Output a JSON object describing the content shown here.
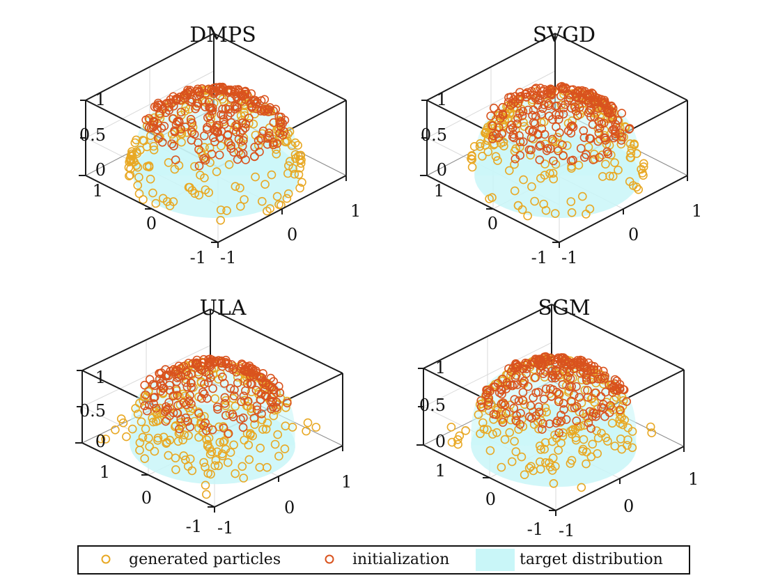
{
  "figure": {
    "description_note": "",
    "legend": {
      "generated_label": "generated particles",
      "init_label": "initialization",
      "target_label": "target distribution"
    },
    "colors": {
      "generated": "#E8A824",
      "initialization": "#D9531E",
      "target": "#C9F6F8",
      "axes": "#1a1a1a",
      "grid": "#d9d9d9"
    }
  },
  "chart_data": [
    {
      "type": "scatter3d",
      "title": "DMPS",
      "xlim": [
        -1,
        1
      ],
      "ylim": [
        -1,
        1
      ],
      "zlim": [
        0,
        1
      ],
      "x_ticks": [
        "-1",
        "0",
        "1"
      ],
      "y_ticks": [
        "-1",
        "0",
        "1"
      ],
      "z_ticks": [
        "0",
        "0.5",
        "1"
      ],
      "series": [
        {
          "name": "target distribution",
          "shape": "hemisphere",
          "radius": 0.9
        },
        {
          "name": "generated particles",
          "count": 210,
          "distribution": "spread over hemisphere, concentrated near cap",
          "seed": 11
        },
        {
          "name": "initialization",
          "count": 240,
          "distribution": "cap band z≈0.6–1",
          "seed": 12
        }
      ]
    },
    {
      "type": "scatter3d",
      "title": "SVGD",
      "xlim": [
        -1,
        1
      ],
      "ylim": [
        -1,
        1
      ],
      "zlim": [
        0,
        1
      ],
      "x_ticks": [
        "-1",
        "0",
        "1"
      ],
      "y_ticks": [
        "-1",
        "0",
        "1"
      ],
      "z_ticks": [
        "0",
        "0.5",
        "1"
      ],
      "series": [
        {
          "name": "target distribution",
          "shape": "hemisphere",
          "radius": 0.9
        },
        {
          "name": "generated particles",
          "count": 200,
          "distribution": "ring near z≈0.4–0.8 plus low points",
          "seed": 21
        },
        {
          "name": "initialization",
          "count": 240,
          "distribution": "cap band z≈0.6–1",
          "seed": 22
        }
      ]
    },
    {
      "type": "scatter3d",
      "title": "ULA",
      "xlim": [
        -1,
        1
      ],
      "ylim": [
        -1,
        1
      ],
      "zlim": [
        0,
        1
      ],
      "x_ticks": [
        "-1",
        "0",
        "1"
      ],
      "y_ticks": [
        "-1",
        "0",
        "1"
      ],
      "z_ticks": [
        "0",
        "0.5",
        "1"
      ],
      "series": [
        {
          "name": "target distribution",
          "shape": "hemisphere",
          "radius": 0.9
        },
        {
          "name": "generated particles",
          "count": 230,
          "distribution": "spread over hemisphere and base",
          "seed": 31
        },
        {
          "name": "initialization",
          "count": 220,
          "distribution": "cap band z≈0.65–1",
          "seed": 32
        }
      ]
    },
    {
      "type": "scatter3d",
      "title": "SGM",
      "xlim": [
        -1,
        1
      ],
      "ylim": [
        -1,
        1
      ],
      "zlim": [
        0,
        1
      ],
      "x_ticks": [
        "-1",
        "0",
        "1"
      ],
      "y_ticks": [
        "-1",
        "0",
        "1"
      ],
      "z_ticks": [
        "0",
        "0.5",
        "1"
      ],
      "series": [
        {
          "name": "target distribution",
          "shape": "hemisphere",
          "radius": 0.9
        },
        {
          "name": "generated particles",
          "count": 230,
          "distribution": "spread over hemisphere and base",
          "seed": 41
        },
        {
          "name": "initialization",
          "count": 240,
          "distribution": "cap band z≈0.6–1",
          "seed": 42
        }
      ]
    }
  ]
}
